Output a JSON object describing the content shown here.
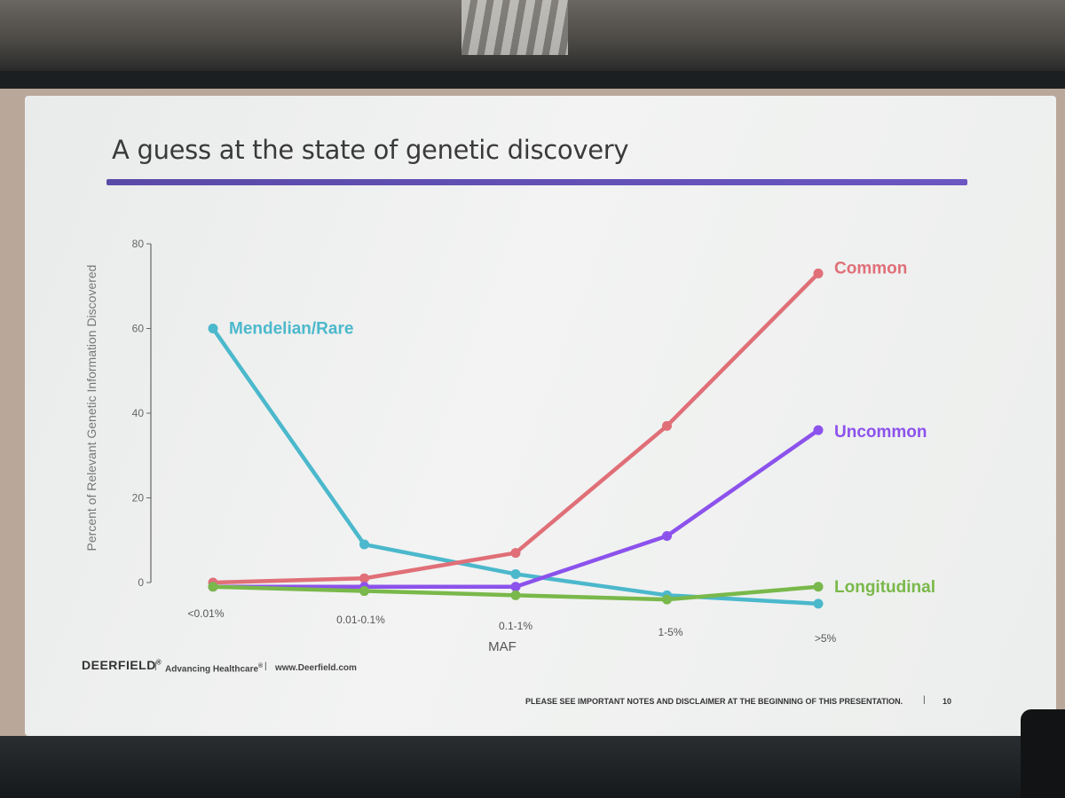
{
  "slide": {
    "title": "A guess at the state of genetic discovery"
  },
  "footer": {
    "logo": "DEERFIELD",
    "logo_mark": "®",
    "separator": "|",
    "tagline": "Advancing Healthcare",
    "tagline_mark": "®",
    "website": "www.Deerfield.com",
    "disclaimer": "PLEASE SEE IMPORTANT NOTES AND DISCLAIMER AT THE BEGINNING OF THIS PRESENTATION.",
    "page_number": "10"
  },
  "chart_data": {
    "type": "line",
    "xlabel": "MAF",
    "ylabel": "Percent of Relevant Genetic Information Discovered",
    "categories": [
      "<0.01%",
      "0.01-0.1%",
      "0.1-1%",
      "1-5%",
      ">5%"
    ],
    "ylim": [
      0,
      80
    ],
    "yticks": [
      0,
      20,
      40,
      60,
      80
    ],
    "grid": false,
    "legend": "inline labels at series ends",
    "series": [
      {
        "name": "Mendelian/Rare",
        "color": "#4bb8cc",
        "values": [
          60,
          9,
          2,
          -3,
          -5
        ]
      },
      {
        "name": "Common",
        "color": "#e06f78",
        "values": [
          0,
          1,
          7,
          37,
          73
        ]
      },
      {
        "name": "Uncommon",
        "color": "#8c52ec",
        "values": [
          -1,
          -1,
          -1,
          11,
          36
        ]
      },
      {
        "name": "Longitudinal",
        "color": "#79b84a",
        "values": [
          -1,
          -2,
          -3,
          -4,
          -1
        ]
      }
    ]
  }
}
